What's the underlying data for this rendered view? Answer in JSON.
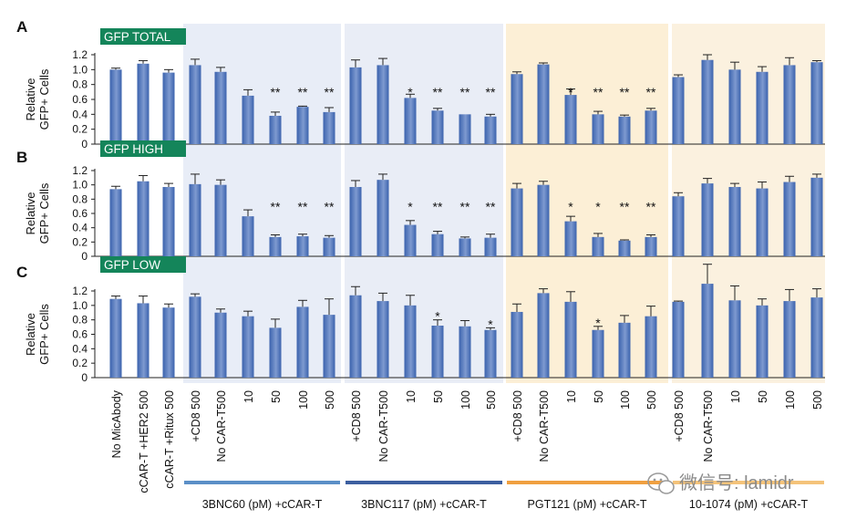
{
  "colors": {
    "bar": "#3b62ad",
    "bar_light": "#7e9ad0",
    "group1_bg": "#e8edf7",
    "group2_bg": "#e9edf6",
    "group3_bg": "#fcefd6",
    "group4_bg": "#fbf1df",
    "panel_label_bg": "#14855a",
    "group1_line": "#5b8fc7",
    "group2_line": "#3c5fa0",
    "group3_line": "#f0a040",
    "group4_line": "#f4c37a"
  },
  "chart_data": [
    {
      "type": "bar",
      "panel": "A",
      "title": "GFP TOTAL",
      "ylabel_line1": "Relative",
      "ylabel_line2": "GFP+ Cells",
      "ylim": [
        0,
        1.2
      ],
      "yticks": [
        "0",
        "0.2",
        "0.4",
        "0.6",
        "0.8",
        "1.0",
        "1.2"
      ],
      "values": [
        1.0,
        1.08,
        0.96,
        1.06,
        0.97,
        0.65,
        0.38,
        0.5,
        0.43,
        1.03,
        1.06,
        0.62,
        0.45,
        0.4,
        0.37,
        0.94,
        1.07,
        0.66,
        0.4,
        0.37,
        0.45,
        0.9,
        1.13,
        1.0,
        0.97,
        1.06,
        1.1
      ],
      "errors": [
        0.02,
        0.04,
        0.04,
        0.08,
        0.06,
        0.08,
        0.05,
        0.01,
        0.06,
        0.1,
        0.09,
        0.05,
        0.03,
        0.0,
        0.03,
        0.03,
        0.02,
        0.08,
        0.04,
        0.02,
        0.03,
        0.03,
        0.07,
        0.1,
        0.07,
        0.1,
        0.02
      ],
      "significance": [
        "",
        "",
        "",
        "",
        "",
        "",
        "**",
        "**",
        "**",
        "",
        "",
        "*",
        "**",
        "**",
        "**",
        "",
        "",
        "*",
        "**",
        "**",
        "**",
        "",
        "",
        "",
        "",
        "",
        ""
      ]
    },
    {
      "type": "bar",
      "panel": "B",
      "title": "GFP HIGH",
      "ylabel_line1": "Relative",
      "ylabel_line2": "GFP+ Cells",
      "ylim": [
        0,
        1.2
      ],
      "yticks": [
        "0",
        "0.2",
        "0.4",
        "0.6",
        "0.8",
        "1.0",
        "1.2"
      ],
      "values": [
        0.94,
        1.05,
        0.97,
        1.01,
        1.0,
        0.56,
        0.27,
        0.28,
        0.26,
        0.97,
        1.07,
        0.44,
        0.31,
        0.25,
        0.26,
        0.95,
        1.0,
        0.49,
        0.27,
        0.22,
        0.27,
        0.84,
        1.02,
        0.97,
        0.95,
        1.04,
        1.1
      ],
      "errors": [
        0.04,
        0.08,
        0.05,
        0.14,
        0.07,
        0.09,
        0.03,
        0.03,
        0.03,
        0.09,
        0.08,
        0.06,
        0.04,
        0.02,
        0.05,
        0.07,
        0.05,
        0.07,
        0.05,
        0.01,
        0.03,
        0.05,
        0.07,
        0.05,
        0.09,
        0.08,
        0.05
      ],
      "significance": [
        "",
        "",
        "",
        "",
        "",
        "",
        "**",
        "**",
        "**",
        "",
        "",
        "*",
        "**",
        "**",
        "**",
        "",
        "",
        "*",
        "*",
        "**",
        "**",
        "",
        "",
        "",
        "",
        "",
        ""
      ]
    },
    {
      "type": "bar",
      "panel": "C",
      "title": "GFP LOW",
      "ylabel_line1": "Relative",
      "ylabel_line2": "GFP+ Cells",
      "ylim": [
        0,
        1.2
      ],
      "yticks": [
        "0",
        "0.2",
        "0.4",
        "0.6",
        "0.8",
        "1.0",
        "1.2"
      ],
      "values": [
        1.09,
        1.03,
        0.97,
        1.12,
        0.9,
        0.85,
        0.69,
        0.98,
        0.87,
        1.14,
        1.06,
        1.0,
        0.72,
        0.71,
        0.66,
        0.91,
        1.17,
        1.05,
        0.66,
        0.76,
        0.85,
        1.05,
        1.3,
        1.07,
        1.0,
        1.06,
        1.11
      ],
      "errors": [
        0.04,
        0.1,
        0.05,
        0.04,
        0.05,
        0.07,
        0.12,
        0.09,
        0.22,
        0.12,
        0.11,
        0.14,
        0.08,
        0.08,
        0.03,
        0.11,
        0.06,
        0.14,
        0.05,
        0.1,
        0.14,
        0.01,
        0.27,
        0.2,
        0.09,
        0.16,
        0.12
      ],
      "significance": [
        "",
        "",
        "",
        "",
        "",
        "",
        "",
        "",
        "",
        "",
        "",
        "",
        "*",
        "",
        "*",
        "",
        "",
        "",
        "*",
        "",
        "",
        "",
        "",
        "",
        "",
        "",
        ""
      ]
    }
  ],
  "categories": [
    "No MicAbody",
    "cCAR-T +HER2 500",
    "cCAR-T +Ritux 500",
    "+CD8 500",
    "No CAR-T500",
    "10",
    "50",
    "100",
    "500",
    "+CD8 500",
    "No CAR-T500",
    "10",
    "50",
    "100",
    "500",
    "+CD8 500",
    "No CAR-T500",
    "10",
    "50",
    "100",
    "500",
    "+CD8 500",
    "No CAR-T500",
    "10",
    "50",
    "100",
    "500"
  ],
  "groups": [
    {
      "label": "3BNC60 (pM) +cCAR-T"
    },
    {
      "label": "3BNC117 (pM) +cCAR-T"
    },
    {
      "label": "PGT121 (pM) +cCAR-T"
    },
    {
      "label": "10-1074 (pM) +cCAR-T"
    }
  ],
  "watermark": "微信号: lamidr"
}
